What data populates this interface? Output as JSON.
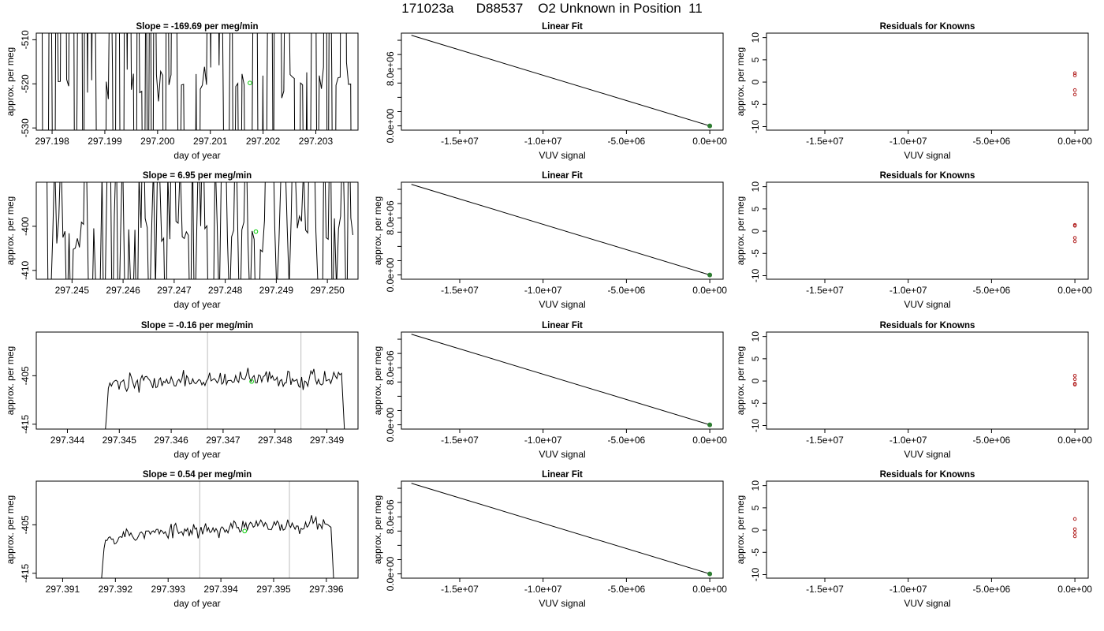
{
  "title": {
    "run_id": "171023a",
    "tank_id": "D88537",
    "label": "O2 Unknown in Position  11"
  },
  "chart_data": [
    {
      "type": "line",
      "row": 1,
      "col": "timeseries",
      "title": "Slope =  -169.69  per meg/min",
      "xlabel": "day of year",
      "ylabel": "approx. per meg",
      "xlim": [
        297.1977,
        297.2038
      ],
      "ylim": [
        -530.5,
        -508.5
      ],
      "xticks": [
        297.198,
        297.199,
        297.2,
        297.201,
        297.202,
        297.203
      ],
      "xtick_labels": [
        "297.198",
        "297.199",
        "297.200",
        "297.201",
        "297.202",
        "297.203"
      ],
      "yticks": [
        -510,
        -520,
        -530
      ],
      "ytick_labels": [
        "-510",
        "-520",
        "-530"
      ],
      "mode": "spiky",
      "seed": 11,
      "x_start": 297.1978,
      "x_end": 297.2037,
      "n_points": 150,
      "baseline": -520,
      "noise": 60,
      "gray_lines": [],
      "highlight_point": {
        "x": 297.20175,
        "y": -519.8
      }
    },
    {
      "type": "line",
      "row": 1,
      "col": "linear_fit",
      "title": "Linear Fit",
      "xlabel": "VUV signal",
      "ylabel": "",
      "xlim": [
        -18500000,
        800000
      ],
      "ylim": [
        -600000,
        13000000
      ],
      "xticks": [
        -15000000,
        -10000000,
        -5000000,
        0
      ],
      "xtick_labels": [
        "-1.5e+07",
        "-1.0e+07",
        "-5.0e+06",
        "0.0e+00"
      ],
      "yticks": [
        0,
        2000000,
        4000000,
        6000000,
        8000000,
        10000000,
        12000000
      ],
      "ytick_labels": [
        "0.0e+00",
        "",
        "",
        "",
        "8.0e+06",
        "",
        ""
      ],
      "fit_line": {
        "x0": -17900000,
        "y0": 12700000,
        "x1": 0,
        "y1": 0
      },
      "points": [
        {
          "x": 0,
          "y": 0
        }
      ]
    },
    {
      "type": "scatter",
      "row": 1,
      "col": "residuals",
      "title": "Residuals for Knowns",
      "xlabel": "VUV signal",
      "ylabel": "approx. per meg",
      "xlim": [
        -18500000,
        800000
      ],
      "ylim": [
        -10.8,
        11
      ],
      "xticks": [
        -15000000,
        -10000000,
        -5000000,
        0
      ],
      "xtick_labels": [
        "-1.5e+07",
        "-1.0e+07",
        "-5.0e+06",
        "0.0e+00"
      ],
      "yticks": [
        10,
        5,
        0,
        -5,
        -10
      ],
      "ytick_labels": [
        "10",
        "5",
        "0",
        "-5",
        "-10"
      ],
      "residuals": [
        {
          "x": 0,
          "y": 2.0
        },
        {
          "x": 0,
          "y": 1.5
        },
        {
          "x": 0,
          "y": -1.8
        },
        {
          "x": 0,
          "y": -2.8
        }
      ]
    },
    {
      "type": "line",
      "row": 2,
      "col": "timeseries",
      "title": "Slope =  6.95  per meg/min",
      "xlabel": "day of year",
      "ylabel": "approx. per meg",
      "xlim": [
        297.2443,
        297.2506
      ],
      "ylim": [
        -412,
        -390
      ],
      "xticks": [
        297.245,
        297.246,
        297.247,
        297.248,
        297.249,
        297.25
      ],
      "xtick_labels": [
        "297.245",
        "297.246",
        "297.247",
        "297.248",
        "297.249",
        "297.250"
      ],
      "yticks": [
        -400,
        -410
      ],
      "ytick_labels": [
        "-400",
        "-410"
      ],
      "mode": "spiky",
      "seed": 23,
      "x_start": 297.2445,
      "x_end": 297.2505,
      "n_points": 150,
      "baseline": -401,
      "noise": 20,
      "gray_lines": [],
      "highlight_point": {
        "x": 297.2486,
        "y": -401.2
      }
    },
    {
      "type": "line",
      "row": 2,
      "col": "linear_fit",
      "title": "Linear Fit",
      "xlabel": "VUV signal",
      "ylabel": "approx. per meg",
      "xlim": [
        -18500000,
        800000
      ],
      "ylim": [
        -600000,
        13000000
      ],
      "xticks": [
        -15000000,
        -10000000,
        -5000000,
        0
      ],
      "xtick_labels": [
        "-1.5e+07",
        "-1.0e+07",
        "-5.0e+06",
        "0.0e+00"
      ],
      "yticks": [
        0,
        2000000,
        4000000,
        6000000,
        8000000,
        10000000,
        12000000
      ],
      "ytick_labels": [
        "0.0e+00",
        "",
        "",
        "",
        "8.0e+06",
        "",
        ""
      ],
      "fit_line": {
        "x0": -17900000,
        "y0": 12700000,
        "x1": 0,
        "y1": 0
      },
      "points": [
        {
          "x": 0,
          "y": 0
        }
      ]
    },
    {
      "type": "scatter",
      "row": 2,
      "col": "residuals",
      "title": "Residuals for Knowns",
      "xlabel": "VUV signal",
      "ylabel": "approx. per meg",
      "xlim": [
        -18500000,
        800000
      ],
      "ylim": [
        -10.8,
        11
      ],
      "xticks": [
        -15000000,
        -10000000,
        -5000000,
        0
      ],
      "xtick_labels": [
        "-1.5e+07",
        "-1.0e+07",
        "-5.0e+06",
        "0.0e+00"
      ],
      "yticks": [
        10,
        5,
        0,
        -5,
        -10
      ],
      "ytick_labels": [
        "10",
        "5",
        "0",
        "-5",
        "-10"
      ],
      "residuals": [
        {
          "x": 0,
          "y": 1.4
        },
        {
          "x": 0,
          "y": 1.2
        },
        {
          "x": 0,
          "y": -1.5
        },
        {
          "x": 0,
          "y": -2.3
        }
      ]
    },
    {
      "type": "line",
      "row": 3,
      "col": "timeseries",
      "title": "Slope =  -0.16  per meg/min",
      "xlabel": "day of year",
      "ylabel": "approx. per meg",
      "xlim": [
        297.3434,
        297.3496
      ],
      "ylim": [
        -416,
        -396
      ],
      "xticks": [
        297.344,
        297.345,
        297.346,
        297.347,
        297.348,
        297.349
      ],
      "xtick_labels": [
        "297.344",
        "297.345",
        "297.346",
        "297.347",
        "297.348",
        "297.349"
      ],
      "yticks": [
        -405,
        -415
      ],
      "ytick_labels": [
        "-405",
        "-415"
      ],
      "mode": "smooth",
      "seed": 37,
      "x_start": 297.3447,
      "x_end": 297.3494,
      "n_points": 160,
      "baseline": -406.5,
      "noise": 1.8,
      "trend": 0.9,
      "gray_lines": [
        297.3467,
        297.3485
      ],
      "highlight_point": {
        "x": 297.34755,
        "y": -406.2
      }
    },
    {
      "type": "line",
      "row": 3,
      "col": "linear_fit",
      "title": "Linear Fit",
      "xlabel": "VUV signal",
      "ylabel": "approx. per meg",
      "xlim": [
        -18500000,
        800000
      ],
      "ylim": [
        -600000,
        13000000
      ],
      "xticks": [
        -15000000,
        -10000000,
        -5000000,
        0
      ],
      "xtick_labels": [
        "-1.5e+07",
        "-1.0e+07",
        "-5.0e+06",
        "0.0e+00"
      ],
      "yticks": [
        0,
        2000000,
        4000000,
        6000000,
        8000000,
        10000000,
        12000000
      ],
      "ytick_labels": [
        "0.0e+00",
        "",
        "",
        "",
        "8.0e+06",
        "",
        ""
      ],
      "fit_line": {
        "x0": -17900000,
        "y0": 12700000,
        "x1": 0,
        "y1": 0
      },
      "points": [
        {
          "x": 0,
          "y": 0
        }
      ]
    },
    {
      "type": "scatter",
      "row": 3,
      "col": "residuals",
      "title": "Residuals for Knowns",
      "xlabel": "VUV signal",
      "ylabel": "approx. per meg",
      "xlim": [
        -18500000,
        800000
      ],
      "ylim": [
        -10.8,
        11
      ],
      "xticks": [
        -15000000,
        -10000000,
        -5000000,
        0
      ],
      "xtick_labels": [
        "-1.5e+07",
        "-1.0e+07",
        "-5.0e+06",
        "0.0e+00"
      ],
      "yticks": [
        10,
        5,
        0,
        -5,
        -10
      ],
      "ytick_labels": [
        "10",
        "5",
        "0",
        "-5",
        "-10"
      ],
      "residuals": [
        {
          "x": 0,
          "y": 1.2
        },
        {
          "x": 0,
          "y": 0.4
        },
        {
          "x": 0,
          "y": -0.6
        },
        {
          "x": 0,
          "y": -0.8
        }
      ]
    },
    {
      "type": "line",
      "row": 4,
      "col": "timeseries",
      "title": "Slope =  0.54  per meg/min",
      "xlabel": "day of year",
      "ylabel": "approx. per meg",
      "xlim": [
        297.3905,
        297.3966
      ],
      "ylim": [
        -416,
        -396
      ],
      "xticks": [
        297.391,
        297.392,
        297.393,
        297.394,
        297.395,
        297.396
      ],
      "xtick_labels": [
        "297.391",
        "297.392",
        "297.393",
        "297.394",
        "297.395",
        "297.396"
      ],
      "yticks": [
        -405,
        -415
      ],
      "ytick_labels": [
        "-405",
        "-415"
      ],
      "mode": "smooth",
      "seed": 53,
      "x_start": 297.3917,
      "x_end": 297.3962,
      "n_points": 160,
      "baseline": -407.5,
      "noise": 1.6,
      "trend": 2.6,
      "gray_lines": [
        297.3936,
        297.3953
      ],
      "highlight_point": {
        "x": 297.39445,
        "y": -406.3
      }
    },
    {
      "type": "line",
      "row": 4,
      "col": "linear_fit",
      "title": "Linear Fit",
      "xlabel": "VUV signal",
      "ylabel": "approx. per meg",
      "xlim": [
        -18500000,
        800000
      ],
      "ylim": [
        -600000,
        13000000
      ],
      "xticks": [
        -15000000,
        -10000000,
        -5000000,
        0
      ],
      "xtick_labels": [
        "-1.5e+07",
        "-1.0e+07",
        "-5.0e+06",
        "0.0e+00"
      ],
      "yticks": [
        0,
        2000000,
        4000000,
        6000000,
        8000000,
        10000000,
        12000000
      ],
      "ytick_labels": [
        "0.0e+00",
        "",
        "",
        "",
        "8.0e+06",
        "",
        ""
      ],
      "fit_line": {
        "x0": -17900000,
        "y0": 12700000,
        "x1": 0,
        "y1": 0
      },
      "points": [
        {
          "x": 0,
          "y": 0
        }
      ]
    },
    {
      "type": "scatter",
      "row": 4,
      "col": "residuals",
      "title": "Residuals for Knowns",
      "xlabel": "VUV signal",
      "ylabel": "approx. per meg",
      "xlim": [
        -18500000,
        800000
      ],
      "ylim": [
        -10.8,
        11
      ],
      "xticks": [
        -15000000,
        -10000000,
        -5000000,
        0
      ],
      "xtick_labels": [
        "-1.5e+07",
        "-1.0e+07",
        "-5.0e+06",
        "0.0e+00"
      ],
      "yticks": [
        10,
        5,
        0,
        -5,
        -10
      ],
      "ytick_labels": [
        "10",
        "5",
        "0",
        "-5",
        "-10"
      ],
      "residuals": [
        {
          "x": 0,
          "y": 2.5
        },
        {
          "x": 0,
          "y": 0.2
        },
        {
          "x": 0,
          "y": -0.6
        },
        {
          "x": 0,
          "y": -1.4
        }
      ]
    }
  ],
  "colors": {
    "line": "#000000",
    "highlight": "#00cc00",
    "fit_point": "#2e7d32",
    "residual": "#b22222",
    "gray_line": "#c8c8c8",
    "frame": "#000000"
  }
}
